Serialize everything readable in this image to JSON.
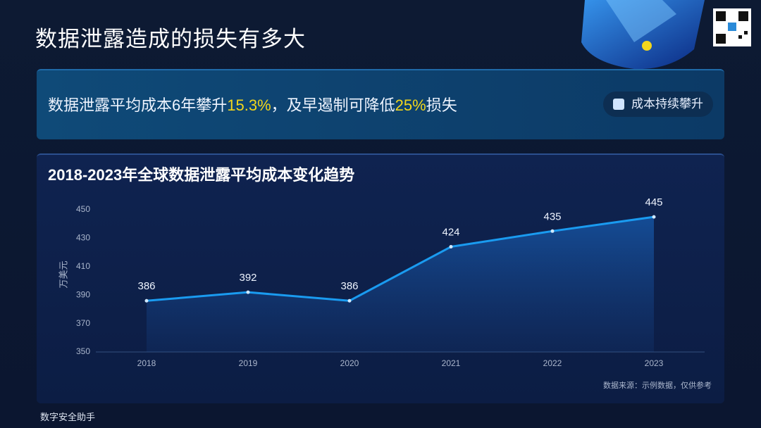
{
  "header": {
    "title": "数据泄露造成的损失有多大"
  },
  "banner": {
    "segments": [
      "数据泄露平均成本6年攀升",
      "15.3%",
      "，及早遏制可降低",
      "25%",
      "损失"
    ],
    "badge": "成本持续攀升"
  },
  "chart_data": {
    "type": "line",
    "title": "2018-2023年全球数据泄露平均成本变化趋势",
    "y_label": "万美元",
    "categories": [
      "2018",
      "2019",
      "2020",
      "2021",
      "2022",
      "2023"
    ],
    "values": [
      386,
      392,
      386,
      424,
      435,
      445
    ],
    "color": "#1a9bf0",
    "ylim": [
      350,
      450
    ],
    "yticks": [
      350,
      370,
      390,
      410,
      430,
      450
    ],
    "grid": false,
    "source": "数据来源：示例数据，仅供参考"
  },
  "footer": {
    "text": "数字安全助手"
  }
}
